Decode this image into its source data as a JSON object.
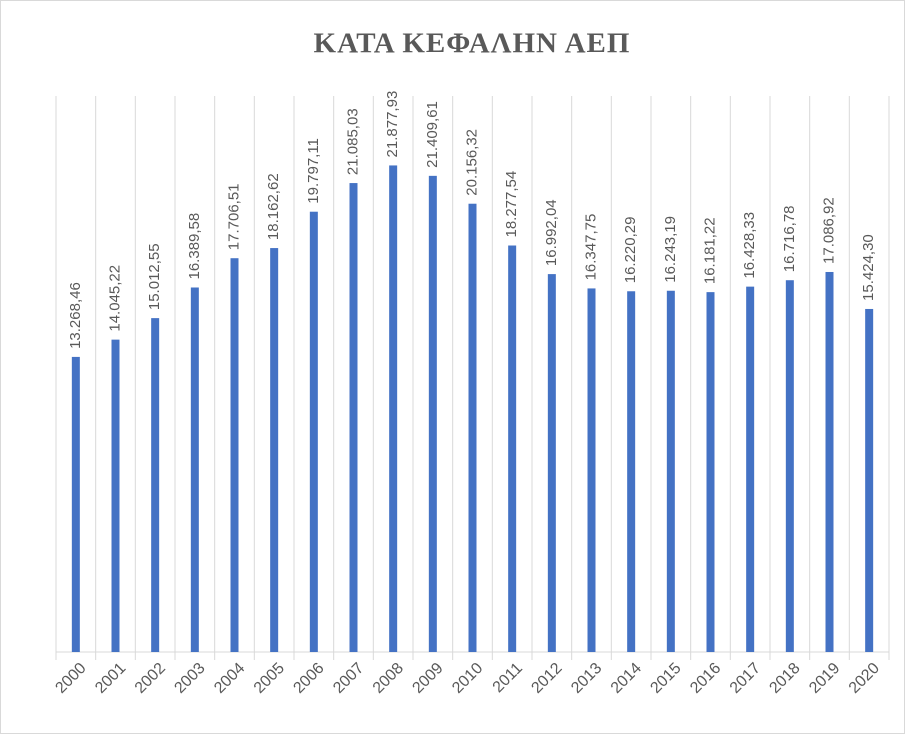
{
  "chart_data": {
    "type": "bar",
    "title": "ΚΑΤΑ ΚΕΦΑΛΗΝ ΑΕΠ",
    "categories": [
      "2000",
      "2001",
      "2002",
      "2003",
      "2004",
      "2005",
      "2006",
      "2007",
      "2008",
      "2009",
      "2010",
      "2011",
      "2012",
      "2013",
      "2014",
      "2015",
      "2016",
      "2017",
      "2018",
      "2019",
      "2020"
    ],
    "values": [
      13268.46,
      14045.22,
      15012.55,
      16389.58,
      17706.51,
      18162.62,
      19797.11,
      21085.03,
      21877.93,
      21409.61,
      20156.32,
      18277.54,
      16992.04,
      16347.75,
      16220.29,
      16243.19,
      16181.22,
      16428.33,
      16716.78,
      17086.92,
      15424.3
    ],
    "value_labels": [
      "13.268,46",
      "14.045,22",
      "15.012,55",
      "16.389,58",
      "17.706,51",
      "18.162,62",
      "19.797,11",
      "21.085,03",
      "21.877,93",
      "21.409,61",
      "20.156,32",
      "18.277,54",
      "16.992,04",
      "16.347,75",
      "16.220,29",
      "16.243,19",
      "16.181,22",
      "16.428,33",
      "16.716,78",
      "17.086,92",
      "15.424,30"
    ],
    "color": "#4472c4",
    "ylim": [
      0,
      25000
    ]
  }
}
